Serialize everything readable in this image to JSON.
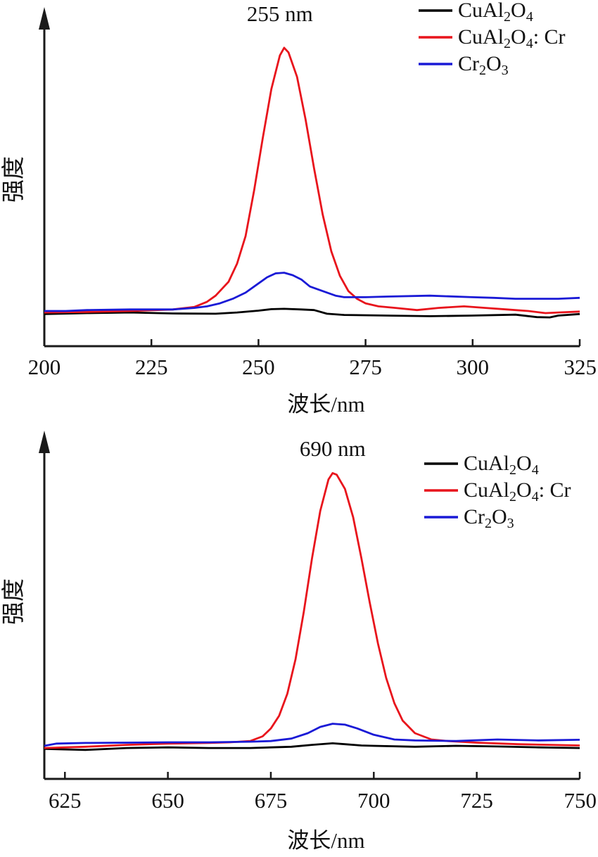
{
  "colors": {
    "CuAl2O4": "#000000",
    "CuAl2O4_Cr": "#e8141c",
    "Cr2O3": "#1a1ad6",
    "axis": "#1a1a1a"
  },
  "chart_data": [
    {
      "type": "line",
      "ylabel": "强度",
      "xlabel": "波长/nm",
      "xlim": [
        200,
        325
      ],
      "ylim": [
        0,
        100
      ],
      "xticks": [
        200,
        225,
        250,
        275,
        300,
        325
      ],
      "xtick_labels": [
        "200",
        "225",
        "250",
        "275",
        "300",
        "325"
      ],
      "yticks": [],
      "legend": "top-right",
      "annotation": {
        "text": "255 nm",
        "x": 255
      },
      "series": [
        {
          "name": "CuAl",
          "name_sub": "2",
          "name_mid": "O",
          "name_sub2": "4",
          "name_tail": "",
          "color_key": "CuAl2O4",
          "x": [
            200,
            210,
            220,
            230,
            240,
            245,
            250,
            253,
            256,
            260,
            263,
            266,
            270,
            280,
            290,
            300,
            310,
            315,
            318,
            320,
            325
          ],
          "y": [
            10.5,
            10.8,
            11.0,
            10.7,
            10.6,
            11.0,
            11.6,
            12.1,
            12.2,
            12.0,
            11.8,
            10.6,
            10.2,
            10.0,
            9.8,
            10.0,
            10.3,
            9.5,
            9.4,
            10.0,
            10.5
          ]
        },
        {
          "name": "CuAl",
          "name_sub": "2",
          "name_mid": "O",
          "name_sub2": "4",
          "name_tail": ": Cr",
          "color_key": "CuAl2O4_Cr",
          "x": [
            200,
            210,
            220,
            230,
            235,
            238,
            240,
            243,
            245,
            247,
            249,
            251,
            253,
            255,
            256,
            257,
            259,
            261,
            263,
            265,
            267,
            269,
            271,
            273,
            275,
            278,
            282,
            287,
            292,
            298,
            303,
            308,
            313,
            317,
            320,
            325
          ],
          "y": [
            11.0,
            11.2,
            11.5,
            12.0,
            12.8,
            14.5,
            16.5,
            21.0,
            27.0,
            36.0,
            51.0,
            68.0,
            84.0,
            95.0,
            97.5,
            96.0,
            88.0,
            74.0,
            58.0,
            43.0,
            31.0,
            23.0,
            18.0,
            15.5,
            14.0,
            13.0,
            12.5,
            11.8,
            12.5,
            13.0,
            12.5,
            12.0,
            11.5,
            10.8,
            11.0,
            11.3
          ]
        },
        {
          "name": "Cr",
          "name_sub": "2",
          "name_mid": "O",
          "name_sub2": "3",
          "name_tail": "",
          "color_key": "Cr2O3",
          "x": [
            200,
            205,
            210,
            220,
            230,
            235,
            238,
            241,
            244,
            247,
            250,
            252,
            254,
            256,
            258,
            260,
            262,
            265,
            268,
            270,
            275,
            280,
            290,
            300,
            305,
            310,
            320,
            325
          ],
          "y": [
            11.5,
            11.5,
            11.8,
            12.0,
            12.0,
            12.5,
            13.0,
            14.0,
            15.5,
            17.5,
            20.5,
            22.5,
            23.8,
            24.0,
            23.2,
            21.8,
            19.5,
            18.0,
            16.5,
            16.0,
            16.0,
            16.2,
            16.5,
            16.0,
            15.8,
            15.5,
            15.5,
            15.8
          ]
        }
      ]
    },
    {
      "type": "line",
      "ylabel": "强度",
      "xlabel": "波长/nm",
      "xlim": [
        620,
        750
      ],
      "ylim": [
        0,
        100
      ],
      "xticks": [
        625,
        650,
        675,
        700,
        725,
        750
      ],
      "xtick_labels": [
        "625",
        "650",
        "675",
        "700",
        "725",
        "750"
      ],
      "yticks": [],
      "legend": "top-right",
      "annotation": {
        "text": "690 nm",
        "x": 690
      },
      "series": [
        {
          "name": "CuAl",
          "name_sub": "2",
          "name_mid": "O",
          "name_sub2": "4",
          "name_tail": "",
          "color_key": "CuAl2O4",
          "x": [
            620,
            630,
            640,
            650,
            660,
            670,
            680,
            685,
            690,
            693,
            697,
            700,
            710,
            720,
            730,
            740,
            750
          ],
          "y": [
            9.5,
            9.2,
            9.8,
            10.0,
            9.8,
            9.8,
            10.2,
            10.8,
            11.3,
            11.0,
            10.6,
            10.5,
            10.2,
            10.5,
            10.3,
            10.0,
            9.8
          ]
        },
        {
          "name": "CuAl",
          "name_sub": "2",
          "name_mid": "O",
          "name_sub2": "4",
          "name_tail": ": Cr",
          "color_key": "CuAl2O4_Cr",
          "x": [
            620,
            630,
            640,
            650,
            660,
            665,
            670,
            673,
            675,
            677,
            679,
            681,
            683,
            685,
            687,
            689,
            690,
            691,
            693,
            695,
            697,
            699,
            701,
            703,
            705,
            707,
            710,
            714,
            718,
            725,
            735,
            750
          ],
          "y": [
            9.8,
            10.2,
            10.8,
            11.2,
            11.4,
            11.6,
            12.0,
            13.5,
            16.0,
            20.0,
            27.0,
            38.0,
            53.0,
            70.0,
            85.0,
            95.0,
            97.0,
            96.5,
            92.0,
            83.0,
            70.0,
            56.0,
            43.0,
            32.0,
            24.0,
            18.5,
            14.5,
            12.5,
            12.0,
            11.5,
            11.0,
            10.6
          ]
        },
        {
          "name": "Cr",
          "name_sub": "2",
          "name_mid": "O",
          "name_sub2": "3",
          "name_tail": "",
          "color_key": "Cr2O3",
          "x": [
            620,
            623,
            630,
            640,
            650,
            660,
            670,
            675,
            680,
            684,
            687,
            690,
            693,
            696,
            700,
            705,
            710,
            720,
            730,
            740,
            750
          ],
          "y": [
            10.5,
            11.2,
            11.4,
            11.5,
            11.6,
            11.6,
            11.8,
            12.0,
            12.8,
            14.5,
            16.5,
            17.5,
            17.2,
            16.0,
            14.0,
            12.5,
            12.2,
            12.0,
            12.5,
            12.2,
            12.4
          ]
        }
      ]
    }
  ]
}
